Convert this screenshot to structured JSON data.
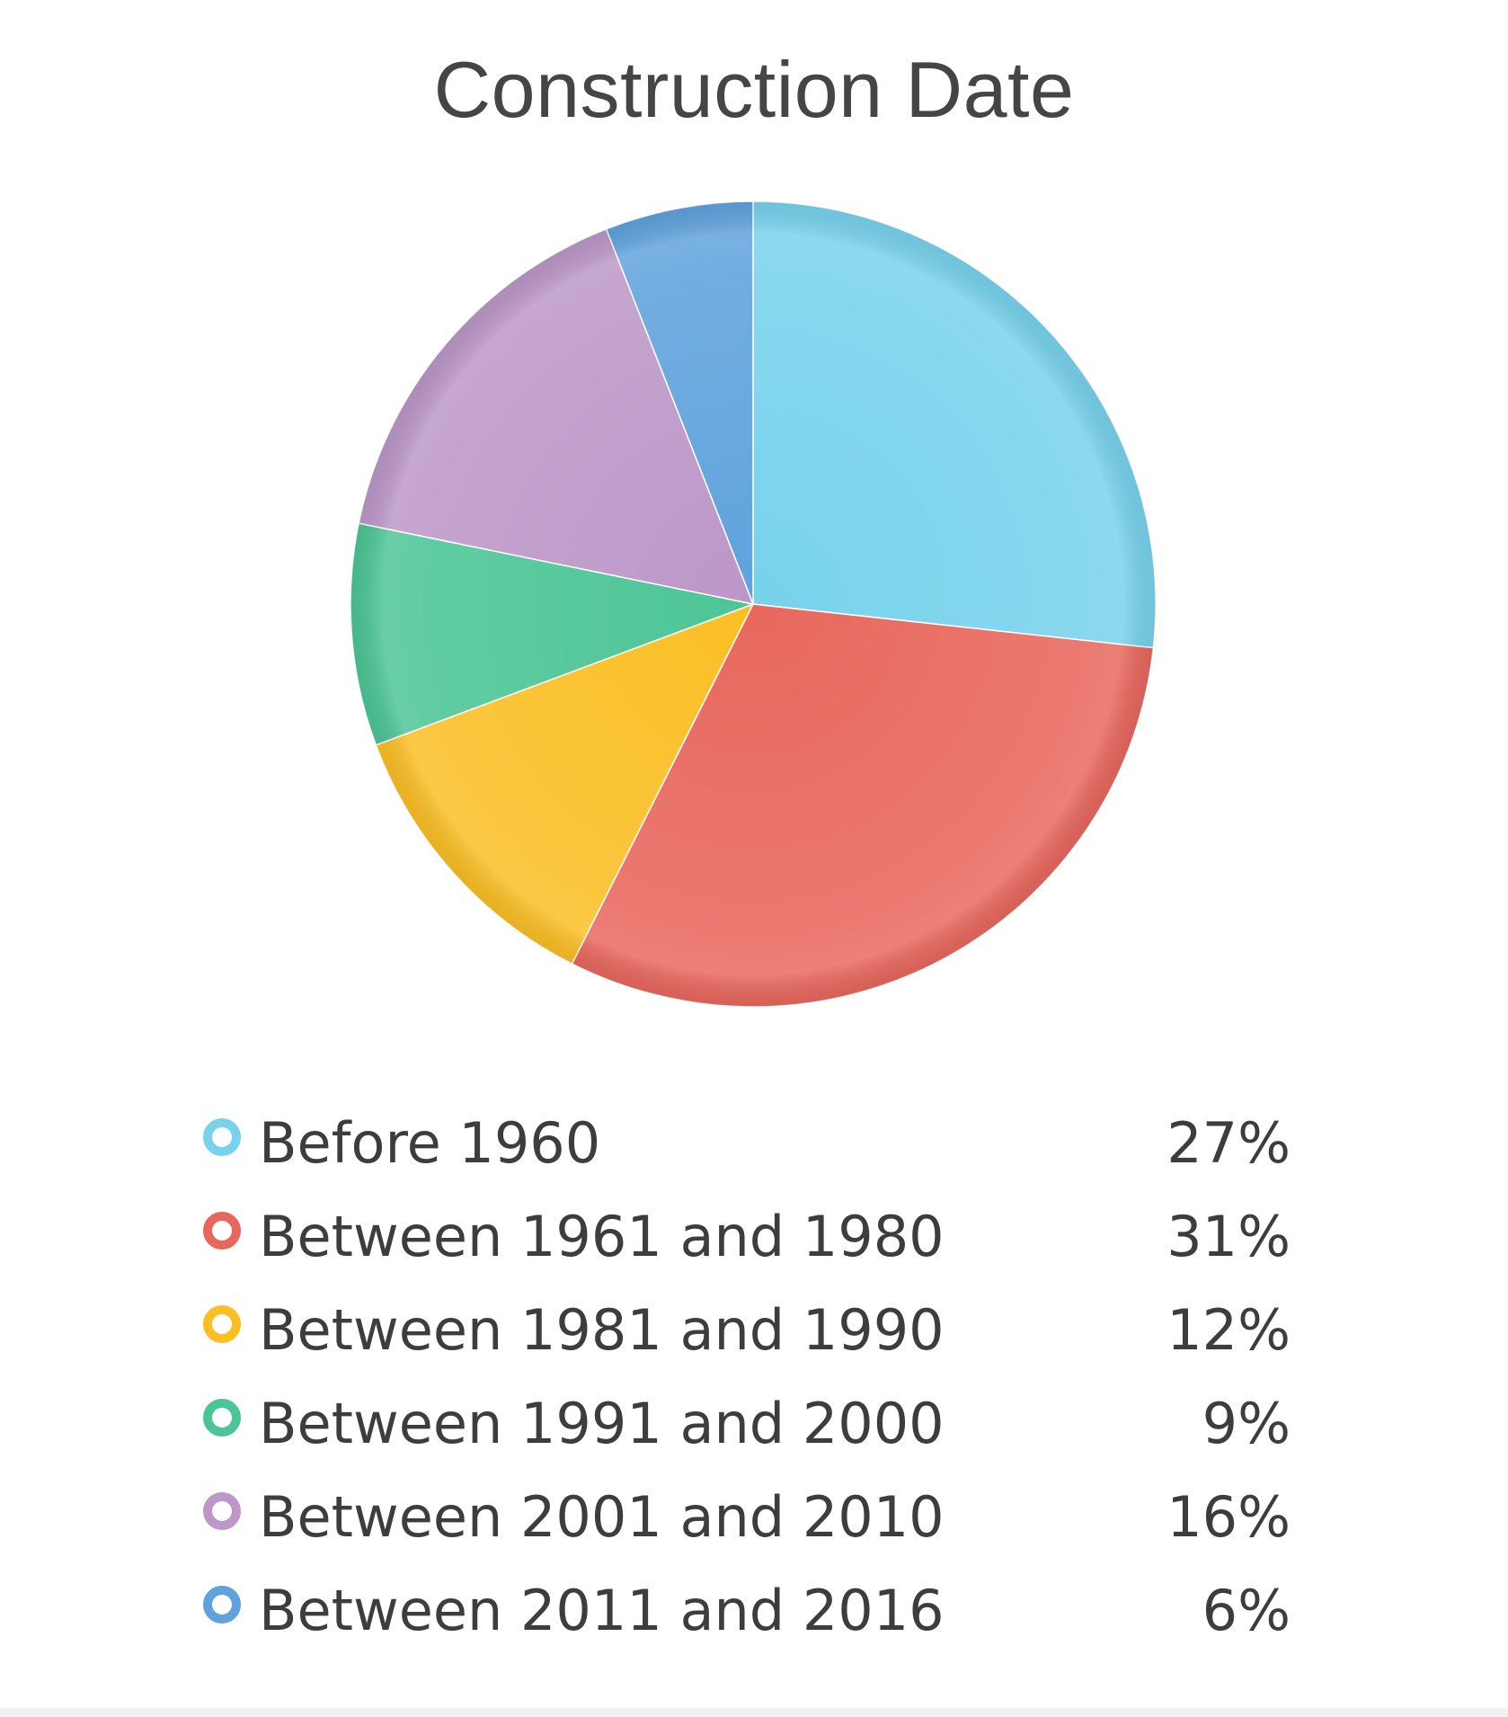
{
  "chart_data": {
    "type": "pie",
    "title": "Construction Date",
    "series": [
      {
        "label": "Before 1960",
        "value": 27,
        "display": "27%",
        "color": "#77d2ec"
      },
      {
        "label": "Between 1961 and 1980",
        "value": 31,
        "display": "31%",
        "color": "#e8675d"
      },
      {
        "label": "Between 1981 and 1990",
        "value": 12,
        "display": "12%",
        "color": "#fbbf24"
      },
      {
        "label": "Between 1991 and 2000",
        "value": 9,
        "display": "9%",
        "color": "#4cc596"
      },
      {
        "label": "Between 2001 and 2010",
        "value": 16,
        "display": "16%",
        "color": "#bc97c8"
      },
      {
        "label": "Between 2011 and 2016",
        "value": 6,
        "display": "6%",
        "color": "#5fa2dd"
      }
    ],
    "start_angle_deg": 0,
    "direction": "clockwise",
    "legend_position": "bottom"
  }
}
